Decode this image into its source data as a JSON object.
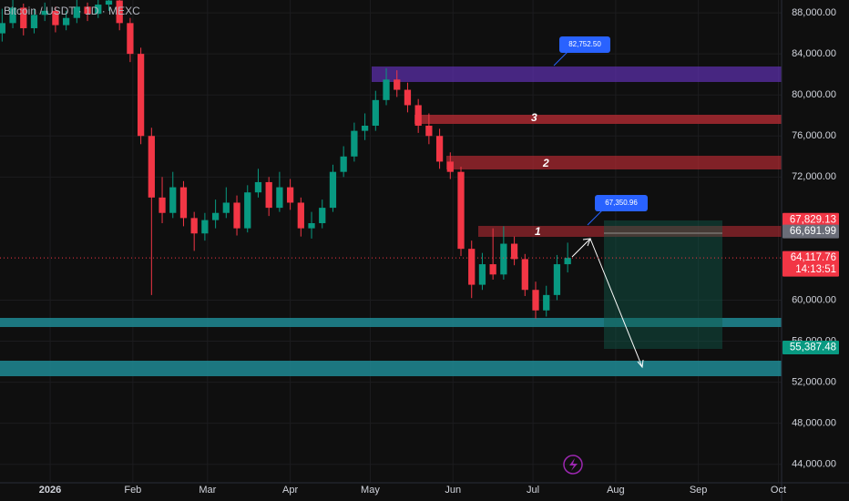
{
  "chart_data": {
    "type": "candlestick",
    "title": "Bitcoin / USDT · 1D · MEXC",
    "x": [
      -18,
      -14,
      -10,
      -6,
      -2,
      2,
      6,
      10,
      14,
      18,
      22,
      26,
      30,
      34,
      38,
      42,
      46,
      50,
      54,
      58,
      62,
      66,
      70,
      74,
      78,
      82,
      86,
      90,
      94,
      98,
      102,
      106,
      110,
      114,
      118,
      122,
      126,
      130,
      134,
      138,
      142,
      146,
      150,
      154,
      158,
      162,
      166,
      170,
      174,
      178,
      182,
      186,
      190,
      194
    ],
    "ohlc": [
      [
        86000,
        88400,
        85200,
        87000
      ],
      [
        87000,
        89300,
        86500,
        88500
      ],
      [
        88500,
        88900,
        85800,
        86500
      ],
      [
        86500,
        88400,
        86000,
        87800
      ],
      [
        87800,
        89000,
        87200,
        88200
      ],
      [
        88200,
        88600,
        86100,
        86800
      ],
      [
        86800,
        88200,
        86300,
        87500
      ],
      [
        87500,
        89300,
        87000,
        88600
      ],
      [
        88600,
        89000,
        87200,
        87900
      ],
      [
        87900,
        89500,
        87500,
        88800
      ],
      [
        88800,
        90000,
        88200,
        89200
      ],
      [
        89200,
        89600,
        86300,
        87000
      ],
      [
        87000,
        87500,
        83200,
        84000
      ],
      [
        84000,
        84600,
        75200,
        76000
      ],
      [
        76000,
        76800,
        60500,
        70000
      ],
      [
        70000,
        72000,
        67500,
        68500
      ],
      [
        68500,
        72500,
        68000,
        71000
      ],
      [
        71000,
        71600,
        67200,
        68000
      ],
      [
        68000,
        68600,
        64800,
        66500
      ],
      [
        66500,
        68500,
        65800,
        67800
      ],
      [
        67800,
        69800,
        67000,
        68500
      ],
      [
        68500,
        71000,
        68000,
        69500
      ],
      [
        69500,
        70200,
        66300,
        67000
      ],
      [
        67000,
        71200,
        66600,
        70500
      ],
      [
        70500,
        72800,
        70000,
        71500
      ],
      [
        71500,
        72000,
        68200,
        69000
      ],
      [
        69000,
        72500,
        68600,
        71000
      ],
      [
        71000,
        71800,
        68800,
        69500
      ],
      [
        69500,
        70000,
        66200,
        67000
      ],
      [
        67000,
        68600,
        66000,
        67500
      ],
      [
        67500,
        69800,
        67000,
        69000
      ],
      [
        69000,
        73200,
        68600,
        72500
      ],
      [
        72500,
        75000,
        72000,
        74000
      ],
      [
        74000,
        77300,
        73500,
        76500
      ],
      [
        76500,
        78200,
        75600,
        77000
      ],
      [
        77000,
        80400,
        76500,
        79500
      ],
      [
        79500,
        82600,
        79000,
        81500
      ],
      [
        81500,
        82400,
        79800,
        80500
      ],
      [
        80500,
        81200,
        78300,
        79000
      ],
      [
        79000,
        79600,
        76300,
        77000
      ],
      [
        77000,
        78200,
        75200,
        76000
      ],
      [
        76000,
        76700,
        72800,
        73500
      ],
      [
        73500,
        74400,
        71800,
        72500
      ],
      [
        72500,
        73000,
        64300,
        65000
      ],
      [
        65000,
        65800,
        60200,
        61500
      ],
      [
        61500,
        64600,
        61000,
        63500
      ],
      [
        63500,
        67000,
        62000,
        62500
      ],
      [
        62500,
        67200,
        62000,
        65500
      ],
      [
        65500,
        66200,
        63400,
        64000
      ],
      [
        64000,
        64500,
        60400,
        61000
      ],
      [
        61000,
        61800,
        58200,
        59000
      ],
      [
        59000,
        61400,
        58400,
        60500
      ],
      [
        60500,
        64400,
        60000,
        63500
      ],
      [
        63500,
        65600,
        62700,
        64117.76
      ]
    ],
    "up_color": "#089981",
    "down_color": "#f23645",
    "xlim": [
      -18.8,
      274.2
    ],
    "xticks": [
      {
        "value": 0,
        "label": "2026"
      },
      {
        "value": 31,
        "label": "Feb"
      },
      {
        "value": 59,
        "label": "Mar"
      },
      {
        "value": 90,
        "label": "Apr"
      },
      {
        "value": 120,
        "label": "May"
      },
      {
        "value": 151,
        "label": "Jun"
      },
      {
        "value": 181,
        "label": "Jul"
      },
      {
        "value": 212,
        "label": "Aug"
      },
      {
        "value": 243,
        "label": "Sep"
      },
      {
        "value": 273,
        "label": "Oct"
      }
    ],
    "ylim": [
      42200,
      89250
    ],
    "yticks": [
      {
        "value": 88000,
        "label": "88,000.00"
      },
      {
        "value": 84000,
        "label": "84,000.00"
      },
      {
        "value": 80000,
        "label": "80,000.00"
      },
      {
        "value": 76000,
        "label": "76,000.00"
      },
      {
        "value": 72000,
        "label": "72,000.00"
      },
      {
        "value": 60000,
        "label": "60,000.00"
      },
      {
        "value": 56000,
        "label": "56,000.00"
      },
      {
        "value": 52000,
        "label": "52,000.00"
      },
      {
        "value": 48000,
        "label": "48,000.00"
      },
      {
        "value": 44000,
        "label": "44,000.00"
      }
    ],
    "price_labels": [
      {
        "value": 67829.13,
        "label": "67,829.13",
        "color": "#f23645"
      },
      {
        "value": 66691.99,
        "label": "66,691.99",
        "color": "#6a6d78"
      },
      {
        "value": 64117.76,
        "label": "64,117.76",
        "color": "#f23645"
      },
      {
        "value": 55387.48,
        "label": "55,387.48",
        "color": "#089981"
      }
    ],
    "countdown": "14:13:51",
    "zone_labels": [
      "1",
      "2",
      "3"
    ],
    "callouts": [
      "82,752.50",
      "67,350.96"
    ]
  }
}
